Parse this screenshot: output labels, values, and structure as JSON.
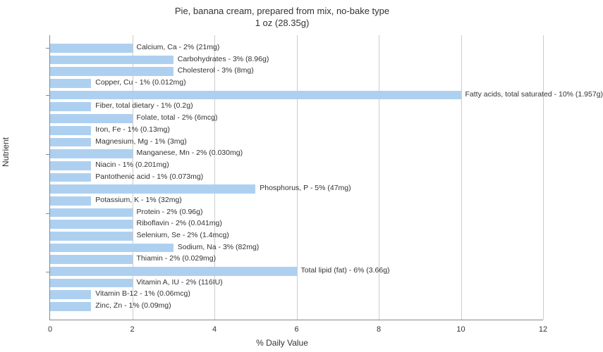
{
  "chart": {
    "type": "bar",
    "title_line1": "Pie, banana cream, prepared from mix, no-bake type",
    "title_line2": "1 oz (28.35g)",
    "title_fontsize": 13,
    "y_axis_label": "Nutrient",
    "x_axis_label": "% Daily Value",
    "label_fontsize": 12,
    "background_color": "#ffffff",
    "bar_color": "#aed0f0",
    "grid_color": "#cccccc",
    "axis_color": "#888888",
    "text_color": "#333333",
    "xlim": [
      0,
      12
    ],
    "xtick_step": 2,
    "xticks": [
      0,
      2,
      4,
      6,
      8,
      10,
      12
    ],
    "bar_label_fontsize": 10.5,
    "nutrients": [
      {
        "label": "Calcium, Ca - 2% (21mg)",
        "value": 2
      },
      {
        "label": "Carbohydrates - 3% (8.96g)",
        "value": 3
      },
      {
        "label": "Cholesterol - 3% (8mg)",
        "value": 3
      },
      {
        "label": "Copper, Cu - 1% (0.012mg)",
        "value": 1
      },
      {
        "label": "Fatty acids, total saturated - 10% (1.957g)",
        "value": 10
      },
      {
        "label": "Fiber, total dietary - 1% (0.2g)",
        "value": 1
      },
      {
        "label": "Folate, total - 2% (6mcg)",
        "value": 2
      },
      {
        "label": "Iron, Fe - 1% (0.13mg)",
        "value": 1
      },
      {
        "label": "Magnesium, Mg - 1% (3mg)",
        "value": 1
      },
      {
        "label": "Manganese, Mn - 2% (0.030mg)",
        "value": 2
      },
      {
        "label": "Niacin - 1% (0.201mg)",
        "value": 1
      },
      {
        "label": "Pantothenic acid - 1% (0.073mg)",
        "value": 1
      },
      {
        "label": "Phosphorus, P - 5% (47mg)",
        "value": 5
      },
      {
        "label": "Potassium, K - 1% (32mg)",
        "value": 1
      },
      {
        "label": "Protein - 2% (0.96g)",
        "value": 2
      },
      {
        "label": "Riboflavin - 2% (0.041mg)",
        "value": 2
      },
      {
        "label": "Selenium, Se - 2% (1.4mcg)",
        "value": 2
      },
      {
        "label": "Sodium, Na - 3% (82mg)",
        "value": 3
      },
      {
        "label": "Thiamin - 2% (0.029mg)",
        "value": 2
      },
      {
        "label": "Total lipid (fat) - 6% (3.66g)",
        "value": 6
      },
      {
        "label": "Vitamin A, IU - 2% (116IU)",
        "value": 2
      },
      {
        "label": "Vitamin B-12 - 1% (0.06mcg)",
        "value": 1
      },
      {
        "label": "Zinc, Zn - 1% (0.09mg)",
        "value": 1
      }
    ]
  }
}
